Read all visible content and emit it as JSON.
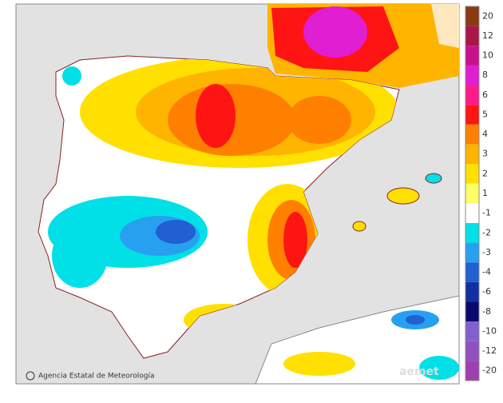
{
  "map": {
    "credit": "Agencia Estatal de Meteorología",
    "watermark": "aemet",
    "legend": [
      {
        "label": "20",
        "color": "#8b3a12"
      },
      {
        "label": "12",
        "color": "#a8164a"
      },
      {
        "label": "10",
        "color": "#c8108c"
      },
      {
        "label": "8",
        "color": "#e01ed2"
      },
      {
        "label": "6",
        "color": "#ff1a8c"
      },
      {
        "label": "5",
        "color": "#ff1414"
      },
      {
        "label": "4",
        "color": "#ff8000"
      },
      {
        "label": "3",
        "color": "#ffb400"
      },
      {
        "label": "2",
        "color": "#ffe000"
      },
      {
        "label": "1",
        "color": "#ffff66"
      },
      {
        "label": "-1",
        "color": "#ffffff"
      },
      {
        "label": "-2",
        "color": "#00e0e6"
      },
      {
        "label": "-3",
        "color": "#28a0f0"
      },
      {
        "label": "-4",
        "color": "#2060d0"
      },
      {
        "label": "-6",
        "color": "#1030a0"
      },
      {
        "label": "-8",
        "color": "#0a0a6e"
      },
      {
        "label": "-10",
        "color": "#8060d0"
      },
      {
        "label": "-12",
        "color": "#9050c0"
      },
      {
        "label": "-20",
        "color": "#a040b0"
      }
    ]
  }
}
